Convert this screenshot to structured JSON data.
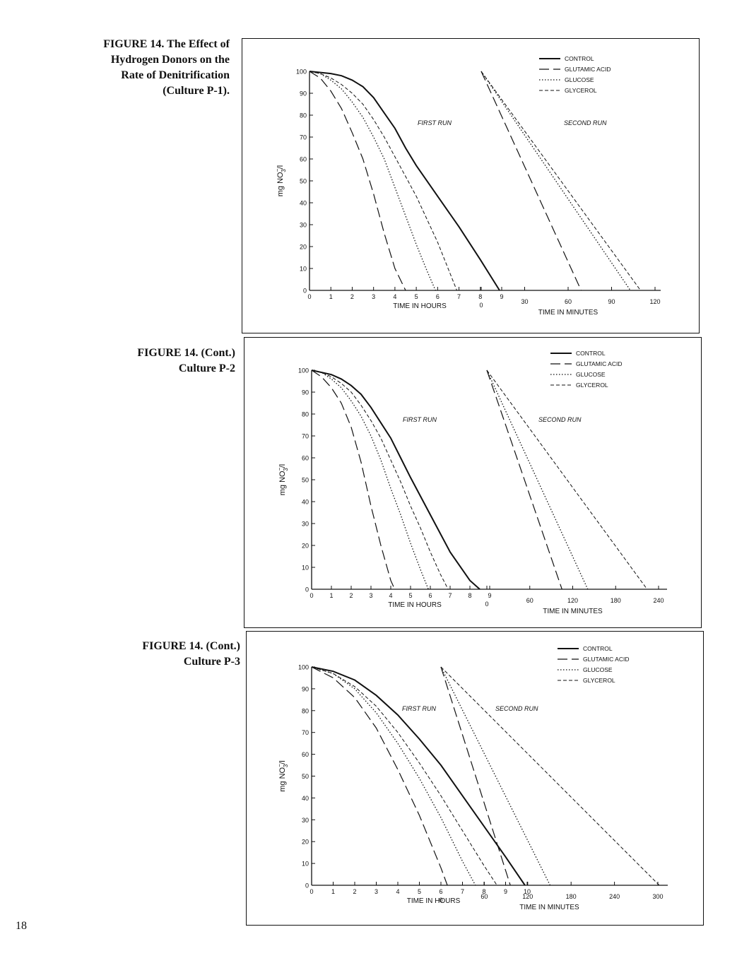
{
  "page": {
    "number": "18"
  },
  "figures": [
    {
      "caption_lines": [
        "FIGURE 14.  The Effect of",
        "Hydrogen Donors on the",
        "Rate of Denitrification",
        "(Culture P-1)."
      ]
    },
    {
      "caption_lines": [
        "FIGURE 14.  (Cont.)",
        "Culture P-2"
      ]
    },
    {
      "caption_lines": [
        "FIGURE 14.  (Cont.)",
        "Culture P-3"
      ]
    }
  ],
  "styles": {
    "line_color": "#111111",
    "series_dash": {
      "CONTROL": "",
      "GLUTAMIC ACID": "14,6",
      "GLUCOSE": "1.5,2.5",
      "GLYCEROL": "5,3"
    },
    "series_width": {
      "CONTROL": 2.0,
      "GLUTAMIC ACID": 1.2,
      "GLUCOSE": 1.3,
      "GLYCEROL": 1.0
    }
  },
  "chart_data": [
    {
      "type": "line",
      "title": "FIGURE 14. The Effect of Hydrogen Donors on the Rate of Denitrification (Culture P-1).",
      "ylabel": "mg NO3⁻/l",
      "ylabel_parts": {
        "pre": "mg NO",
        "sup": "−",
        "sub": "3",
        "post": "/l"
      },
      "ylim": [
        0,
        100
      ],
      "y_ticks": [
        "0",
        "10",
        "20",
        "30",
        "40",
        "50",
        "60",
        "70",
        "80",
        "90",
        "100"
      ],
      "legend": [
        "CONTROL",
        "GLUTAMIC ACID",
        "GLUCOSE",
        "GLYCEROL"
      ],
      "legend_position": "top-right",
      "annotations": [
        "FIRST RUN",
        "SECOND RUN"
      ],
      "first_run": {
        "xlabel": "TIME IN HOURS",
        "xlim": [
          0,
          9
        ],
        "x_ticks": [
          "0",
          "1",
          "2",
          "3",
          "4",
          "5",
          "6",
          "7",
          "8",
          "9"
        ],
        "series": [
          {
            "name": "CONTROL",
            "x": [
              0,
              1,
              1.5,
              2,
              2.5,
              3,
              3.5,
              4,
              4.5,
              5,
              6,
              7,
              8,
              8.9
            ],
            "values": [
              100,
              99,
              98,
              96,
              93,
              88,
              81,
              74,
              65,
              57,
              43,
              29,
              14,
              0
            ]
          },
          {
            "name": "GLUTAMIC ACID",
            "x": [
              0,
              0.5,
              1,
              1.5,
              2,
              2.5,
              3,
              3.5,
              4,
              4.5
            ],
            "values": [
              100,
              97,
              91,
              83,
              72,
              60,
              44,
              26,
              10,
              0
            ]
          },
          {
            "name": "GLUCOSE",
            "x": [
              0,
              0.5,
              1,
              1.5,
              2,
              2.5,
              3,
              3.5,
              4,
              4.5,
              5,
              5.5,
              5.9
            ],
            "values": [
              100,
              99,
              96,
              92,
              86,
              79,
              70,
              60,
              47,
              34,
              21,
              9,
              0
            ]
          },
          {
            "name": "GLYCEROL",
            "x": [
              0,
              0.5,
              1,
              1.5,
              2,
              2.5,
              3,
              3.5,
              4,
              4.5,
              5,
              6,
              6.9
            ],
            "values": [
              100,
              99,
              97,
              94,
              90,
              85,
              78,
              70,
              61,
              52,
              43,
              22,
              0
            ]
          }
        ]
      },
      "second_run": {
        "xlabel": "TIME IN MINUTES",
        "xlim": [
          0,
          120
        ],
        "x_ticks": [
          "0",
          "30",
          "60",
          "90",
          "120"
        ],
        "series": [
          {
            "name": "CONTROL",
            "x": [],
            "values": []
          },
          {
            "name": "GLUTAMIC ACID",
            "x": [
              0,
              69
            ],
            "values": [
              100,
              0
            ]
          },
          {
            "name": "GLUCOSE",
            "x": [
              0,
              103
            ],
            "values": [
              100,
              0
            ]
          },
          {
            "name": "GLYCEROL",
            "x": [
              0,
              110
            ],
            "values": [
              100,
              0
            ]
          }
        ]
      }
    },
    {
      "type": "line",
      "title": "FIGURE 14. (Cont.) Culture P-2",
      "ylabel": "mg NO3⁻/l",
      "ylabel_parts": {
        "pre": "mg NO",
        "sup": "−",
        "sub": "3",
        "post": "/l"
      },
      "ylim": [
        0,
        100
      ],
      "y_ticks": [
        "0",
        "10",
        "20",
        "30",
        "40",
        "50",
        "60",
        "70",
        "80",
        "90",
        "100"
      ],
      "legend": [
        "CONTROL",
        "GLUTAMIC ACID",
        "GLUCOSE",
        "GLYCEROL"
      ],
      "legend_position": "top-right",
      "annotations": [
        "FIRST RUN",
        "SECOND RUN"
      ],
      "first_run": {
        "xlabel": "TIME IN HOURS",
        "xlim": [
          0,
          9
        ],
        "x_ticks": [
          "0",
          "1",
          "2",
          "3",
          "4",
          "5",
          "6",
          "7",
          "8",
          "9"
        ],
        "series": [
          {
            "name": "CONTROL",
            "x": [
              0,
              1,
              1.5,
              2,
              2.5,
              3,
              3.5,
              4,
              4.5,
              5,
              6,
              7,
              8,
              8.5
            ],
            "values": [
              100,
              98,
              96,
              93,
              89,
              83,
              76,
              69,
              60,
              51,
              34,
              17,
              4,
              0
            ]
          },
          {
            "name": "GLUTAMIC ACID",
            "x": [
              0,
              0.5,
              1,
              1.5,
              2,
              2.5,
              3,
              3.5,
              4,
              4.2
            ],
            "values": [
              100,
              97,
              92,
              85,
              74,
              58,
              38,
              20,
              4,
              0
            ]
          },
          {
            "name": "GLUCOSE",
            "x": [
              0,
              0.5,
              1,
              1.5,
              2,
              2.5,
              3,
              3.5,
              4,
              4.5,
              5,
              5.5,
              5.9
            ],
            "values": [
              100,
              99,
              96,
              92,
              86,
              79,
              70,
              59,
              46,
              34,
              21,
              9,
              0
            ]
          },
          {
            "name": "GLYCEROL",
            "x": [
              0,
              0.5,
              1,
              1.5,
              2,
              2.5,
              3,
              3.5,
              4,
              4.5,
              5,
              5.5,
              6,
              6.5,
              6.9
            ],
            "values": [
              100,
              99,
              97,
              94,
              90,
              84,
              77,
              69,
              59,
              49,
              38,
              28,
              17,
              7,
              0
            ]
          }
        ]
      },
      "second_run": {
        "xlabel": "TIME IN MINUTES",
        "xlim": [
          0,
          240
        ],
        "x_ticks": [
          "0",
          "60",
          "120",
          "180",
          "240"
        ],
        "series": [
          {
            "name": "CONTROL",
            "x": [],
            "values": []
          },
          {
            "name": "GLUTAMIC ACID",
            "x": [
              0,
              105
            ],
            "values": [
              100,
              0
            ]
          },
          {
            "name": "GLUCOSE",
            "x": [
              0,
              141
            ],
            "values": [
              100,
              0
            ]
          },
          {
            "name": "GLYCEROL",
            "x": [
              0,
              224
            ],
            "values": [
              100,
              0
            ]
          }
        ]
      }
    },
    {
      "type": "line",
      "title": "FIGURE 14. (Cont.) Culture P-3",
      "ylabel": "mg NO3⁻/l",
      "ylabel_parts": {
        "pre": "mg NO",
        "sup": "−",
        "sub": "3",
        "post": "/l"
      },
      "ylim": [
        0,
        100
      ],
      "y_ticks": [
        "0",
        "10",
        "20",
        "30",
        "40",
        "50",
        "60",
        "70",
        "80",
        "90",
        "100"
      ],
      "legend": [
        "CONTROL",
        "GLUTAMIC ACID",
        "GLUCOSE",
        "GLYCEROL"
      ],
      "legend_position": "top-right",
      "annotations": [
        "FIRST RUN",
        "SECOND RUN"
      ],
      "first_run": {
        "xlabel": "TIME IN HOURS",
        "xlim": [
          0,
          10
        ],
        "x_ticks": [
          "0",
          "1",
          "2",
          "3",
          "4",
          "5",
          "6",
          "7",
          "8",
          "9",
          "10"
        ],
        "series": [
          {
            "name": "CONTROL",
            "x": [
              0,
              1,
              2,
              3,
              4,
              5,
              6,
              7,
              8,
              9,
              9.9
            ],
            "values": [
              100,
              98,
              94,
              87,
              78,
              67,
              55,
              41,
              27,
              13,
              0
            ]
          },
          {
            "name": "GLUTAMIC ACID",
            "x": [
              0,
              1,
              2,
              3,
              4,
              5,
              6,
              6.3
            ],
            "values": [
              100,
              95,
              86,
              72,
              53,
              32,
              8,
              0
            ]
          },
          {
            "name": "GLUCOSE",
            "x": [
              0,
              1,
              2,
              3,
              4,
              5,
              6,
              7,
              7.6
            ],
            "values": [
              100,
              97,
              90,
              79,
              65,
              49,
              31,
              11,
              0
            ]
          },
          {
            "name": "GLYCEROL",
            "x": [
              0,
              1,
              2,
              3,
              4,
              5,
              6,
              7,
              8,
              8.6
            ],
            "values": [
              100,
              97,
              91,
              82,
              70,
              56,
              41,
              25,
              9,
              0
            ]
          }
        ]
      },
      "second_run": {
        "xlabel": "TIME IN MINUTES",
        "xlim": [
          0,
          300
        ],
        "x_ticks": [
          "0",
          "60",
          "120",
          "180",
          "240",
          "300"
        ],
        "series": [
          {
            "name": "CONTROL",
            "x": [],
            "values": []
          },
          {
            "name": "GLUTAMIC ACID",
            "x": [
              0,
              96
            ],
            "values": [
              100,
              0
            ]
          },
          {
            "name": "GLUCOSE",
            "x": [
              0,
              151
            ],
            "values": [
              100,
              0
            ]
          },
          {
            "name": "GLYCEROL",
            "x": [
              0,
              302
            ],
            "values": [
              100,
              0
            ]
          }
        ]
      }
    }
  ]
}
